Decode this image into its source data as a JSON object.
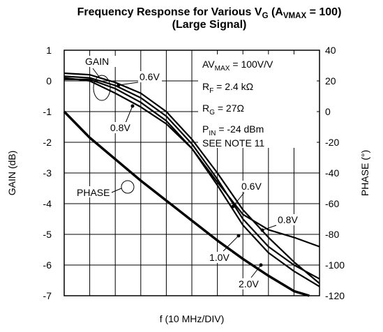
{
  "chart_data": {
    "type": "line",
    "title": [
      "Frequency Response for Various V",
      "G",
      " (A",
      "VMAX",
      " = 100)"
    ],
    "subtitle": "(Large Signal)",
    "xlabel": "f (10 MHz/DIV)",
    "ylabel": "GAIN (dB)",
    "y2label": "PHASE (°)",
    "xlim": [
      0,
      10
    ],
    "xticks": [
      0,
      1,
      2,
      3,
      4,
      5,
      6,
      7,
      8,
      9,
      10
    ],
    "ylim": [
      -7,
      1
    ],
    "yticks": [
      1,
      0,
      -1,
      -2,
      -3,
      -4,
      -5,
      -6,
      -7
    ],
    "y2lim": [
      -120,
      40
    ],
    "y2ticks": [
      40,
      20,
      0,
      -20,
      -40,
      -60,
      -80,
      -100,
      -120
    ],
    "grid": true,
    "x": [
      0,
      1,
      2,
      3,
      4,
      5,
      6,
      7,
      8,
      9,
      10
    ],
    "series": [
      {
        "name": "0.6V",
        "color": "#000000",
        "values": [
          0.25,
          0.2,
          -0.05,
          -0.4,
          -1.0,
          -1.9,
          -3.0,
          -4.2,
          -5.1,
          -5.9,
          -6.6
        ]
      },
      {
        "name": "0.8V",
        "color": "#000000",
        "values": [
          0.1,
          0.0,
          -0.4,
          -0.85,
          -1.4,
          -2.2,
          -3.3,
          -4.35,
          -4.85,
          -5.1,
          -5.4
        ]
      },
      {
        "name": "1.0V",
        "color": "#000000",
        "values": [
          0.15,
          0.1,
          -0.15,
          -0.55,
          -1.15,
          -2.05,
          -3.2,
          -4.5,
          -5.4,
          -6.0,
          -6.45
        ]
      },
      {
        "name": "2.0V",
        "color": "#000000",
        "values": [
          0.05,
          0.05,
          -0.25,
          -0.7,
          -1.3,
          -2.2,
          -3.4,
          -4.7,
          -5.6,
          -6.2,
          -6.7
        ]
      },
      {
        "name": "PHASE",
        "color": "#000000",
        "axis": "y2",
        "x": [
          0,
          1,
          2,
          3,
          4,
          5,
          6,
          7,
          8,
          9,
          9.6
        ],
        "values": [
          0,
          -17,
          -31,
          -45,
          -58,
          -71,
          -84,
          -96,
          -107,
          -117,
          -120
        ]
      }
    ],
    "annotations": {
      "gain": "GAIN",
      "conditions": [
        [
          "AV",
          "MAX",
          " = 100V/V"
        ],
        [
          "R",
          "F",
          " = 2.4 kΩ"
        ],
        [
          "R",
          "G",
          " = 27Ω"
        ],
        [
          "P",
          "IN",
          " = -24 dBm"
        ],
        [
          "SEE NOTE 11"
        ]
      ]
    }
  }
}
